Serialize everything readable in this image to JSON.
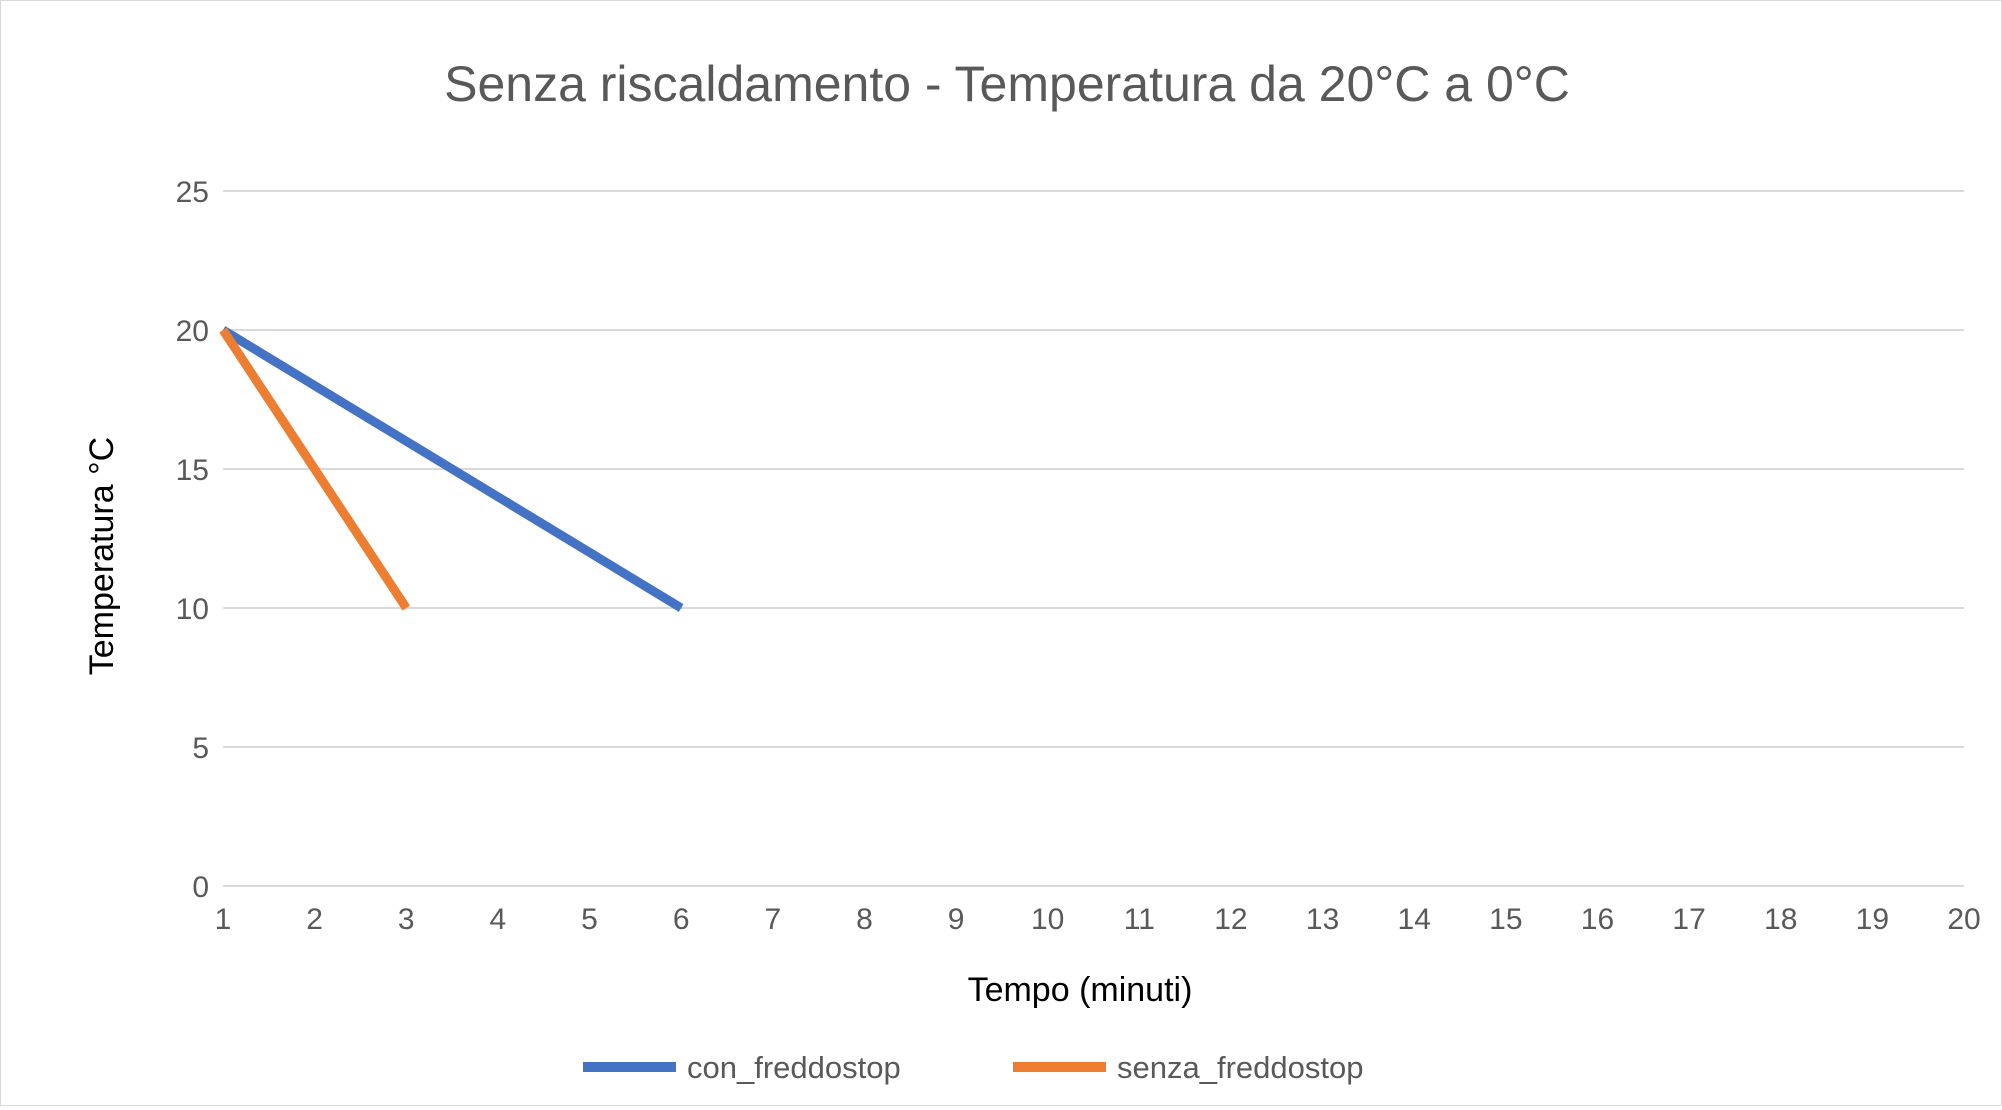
{
  "chart_data": {
    "type": "line",
    "title": "Senza riscaldamento  - Temperatura da 20°C a 0°C",
    "xlabel": "Tempo (minuti)",
    "ylabel": "Temperatura °C",
    "x": [
      1,
      2,
      3,
      4,
      5,
      6,
      7,
      8,
      9,
      10,
      11,
      12,
      13,
      14,
      15,
      16,
      17,
      18,
      19,
      20
    ],
    "xlim": [
      1,
      20
    ],
    "ylim": [
      0,
      25
    ],
    "yticks": [
      0,
      5,
      10,
      15,
      20,
      25
    ],
    "grid": "horizontal",
    "legend": "bottom",
    "series": [
      {
        "name": "con_freddostop",
        "color": "#4472C4",
        "points": [
          [
            1,
            20
          ],
          [
            2,
            18
          ],
          [
            3,
            16
          ],
          [
            4,
            14
          ],
          [
            5,
            12
          ],
          [
            6,
            10
          ]
        ]
      },
      {
        "name": "senza_freddostop",
        "color": "#ED7D31",
        "points": [
          [
            1,
            20
          ],
          [
            2,
            15
          ],
          [
            3,
            10
          ]
        ]
      }
    ],
    "colors": {
      "grid": "#d9d9d9",
      "ticks": "#595959",
      "title": "#595959"
    }
  }
}
